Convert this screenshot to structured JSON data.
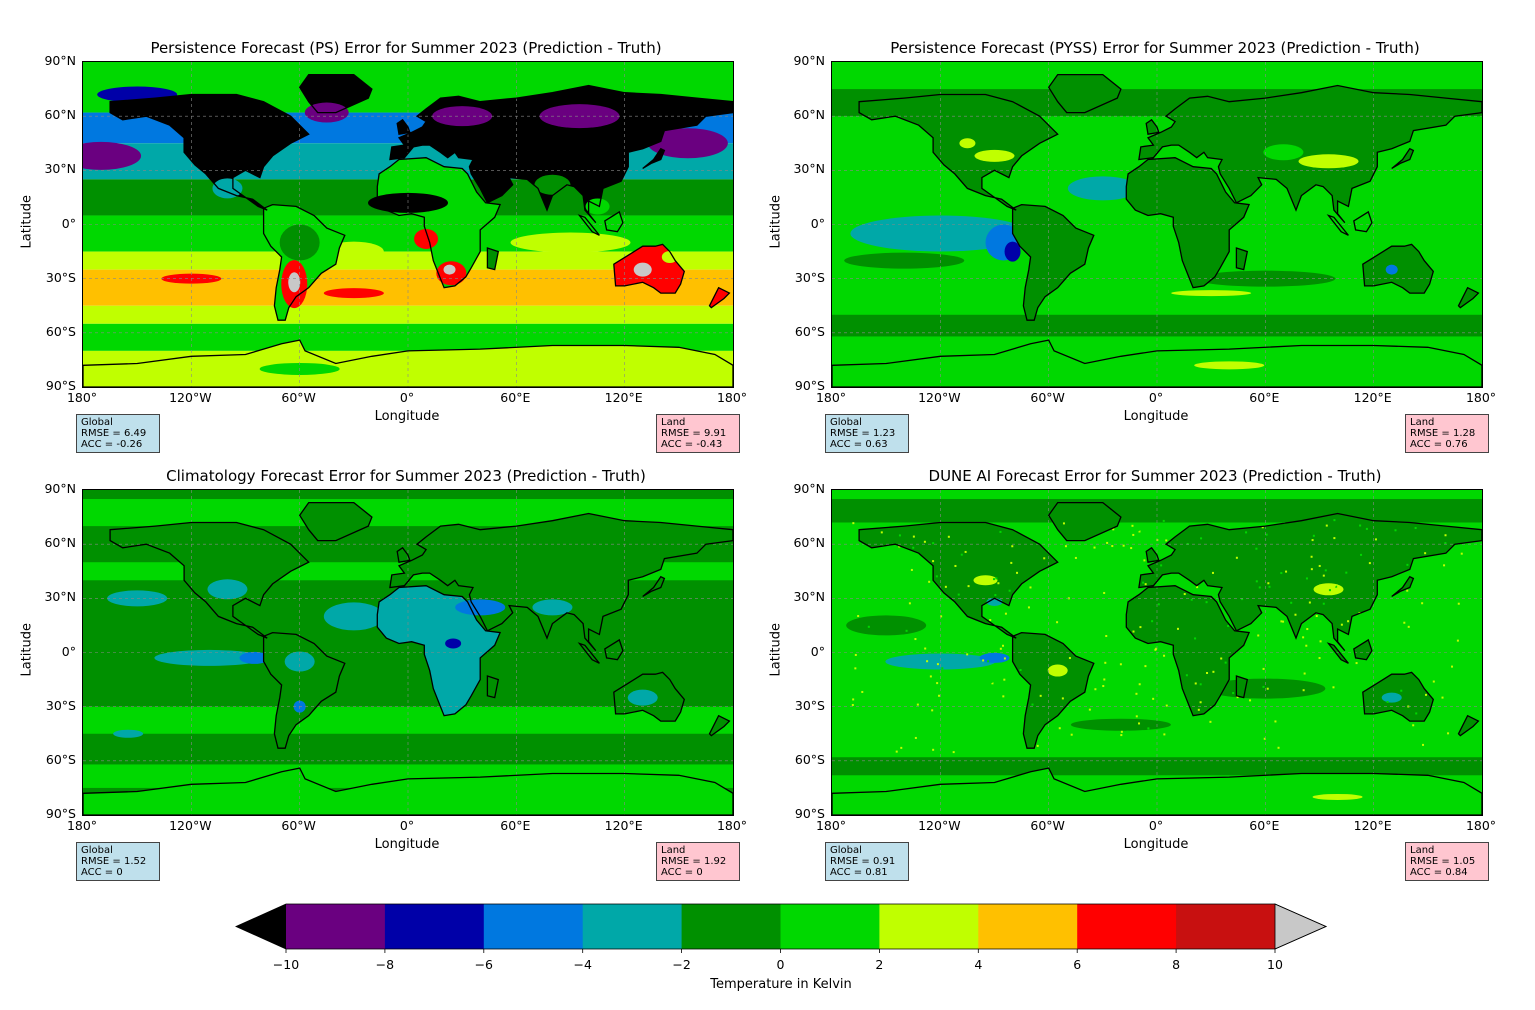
{
  "panels": [
    {
      "id": "ps",
      "title": "Persistence Forecast (PS) Error for Summer 2023 (Prediction - Truth)",
      "global": {
        "label": "Global",
        "rmse": "RMSE = 6.49",
        "acc": "ACC = -0.26"
      },
      "land": {
        "label": "Land",
        "rmse": "RMSE = 9.91",
        "acc": "ACC = -0.43"
      },
      "dominant_band": "mixed: black over northern land, orange/yellow southern ocean, red over southern land"
    },
    {
      "id": "pyss",
      "title": "Persistence Forecast (PYSS) Error for Summer 2023 (Prediction - Truth)",
      "global": {
        "label": "Global",
        "rmse": "RMSE = 1.23",
        "acc": "ACC = 0.63"
      },
      "land": {
        "label": "Land",
        "rmse": "RMSE = 1.28",
        "acc": "ACC = 0.76"
      },
      "dominant_band": "green (0 to 2) and dark green (-2 to 0)"
    },
    {
      "id": "clim",
      "title": "Climatology Forecast Error for Summer 2023 (Prediction - Truth)",
      "global": {
        "label": "Global",
        "rmse": "RMSE = 1.52",
        "acc": "ACC = 0"
      },
      "land": {
        "label": "Land",
        "rmse": "RMSE = 1.92",
        "acc": "ACC = 0"
      },
      "dominant_band": "dark green (-2 to 0) with teal (-4 to -2) patches"
    },
    {
      "id": "dune",
      "title": "DUNE AI Forecast Error for Summer 2023 (Prediction - Truth)",
      "global": {
        "label": "Global",
        "rmse": "RMSE = 0.91",
        "acc": "ACC = 0.81"
      },
      "land": {
        "label": "Land",
        "rmse": "RMSE = 1.05",
        "acc": "ACC = 0.84"
      },
      "dominant_band": "green (0 to 2) and dark green (-2 to 0)"
    }
  ],
  "axes": {
    "xlabel": "Longitude",
    "ylabel": "Latitude",
    "xticks": [
      "180°",
      "120°W",
      "60°W",
      "0°",
      "60°E",
      "120°E",
      "180°"
    ],
    "yticks": [
      "90°N",
      "60°N",
      "30°N",
      "0°",
      "30°S",
      "60°S",
      "90°S"
    ]
  },
  "colorbar": {
    "label": "Temperature in Kelvin",
    "ticks": [
      "−10",
      "−8",
      "−6",
      "−4",
      "−2",
      "0",
      "2",
      "4",
      "6",
      "8",
      "10"
    ],
    "colors": [
      "#6a0080",
      "#0000a8",
      "#0078e0",
      "#00a8a8",
      "#009000",
      "#00d800",
      "#c0ff00",
      "#ffc000",
      "#ff0000",
      "#c81010"
    ],
    "under_color": "#000000",
    "over_color": "#c8c8c8",
    "range": [
      -10,
      10
    ],
    "extend": "both"
  }
}
